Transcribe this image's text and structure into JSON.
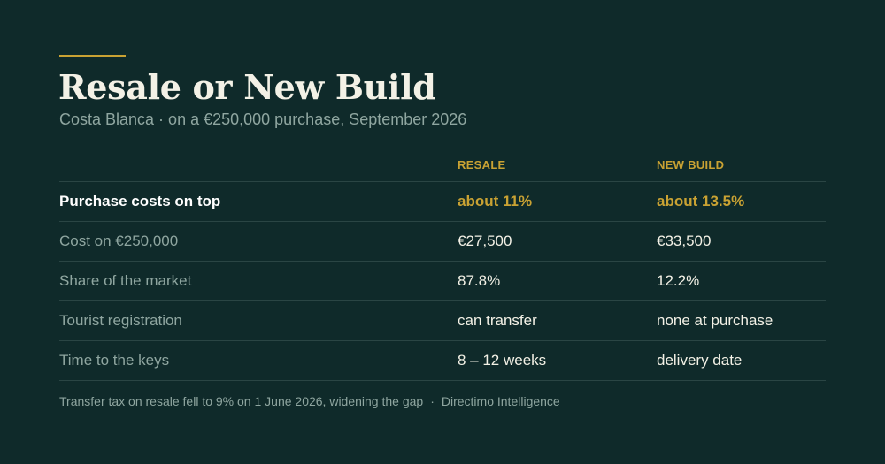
{
  "colors": {
    "background": "#0f2a2a",
    "accent": "#c9a233",
    "text_primary": "#f3f1e6",
    "text_muted": "#8fa6a0",
    "divider": "#2a4544"
  },
  "title": "Resale or New Build",
  "subtitle": "Costa Blanca · on a €250,000 purchase, September 2026",
  "table": {
    "columns": [
      "",
      "RESALE",
      "NEW BUILD"
    ],
    "rows": [
      {
        "label": "Purchase costs on top",
        "resale": "about 11%",
        "new_build": "about 13.5%"
      },
      {
        "label": "Cost on €250,000",
        "resale": "€27,500",
        "new_build": "€33,500"
      },
      {
        "label": "Share of the market",
        "resale": "87.8%",
        "new_build": "12.2%"
      },
      {
        "label": "Tourist registration",
        "resale": "can transfer",
        "new_build": "none at purchase"
      },
      {
        "label": "Time to the keys",
        "resale": "8 – 12 weeks",
        "new_build": "delivery date"
      }
    ]
  },
  "footnote": {
    "text": "Transfer tax on resale fell to 9% on 1 June 2026, widening the gap",
    "separator": "·",
    "source": "Directimo Intelligence"
  }
}
